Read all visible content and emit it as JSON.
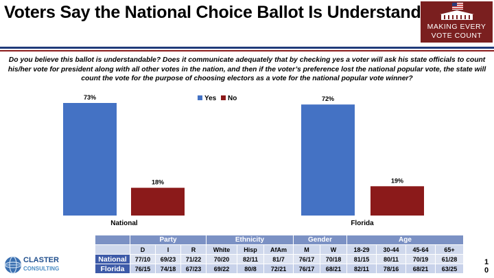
{
  "title": "Voters Say the National Choice Ballot Is Understandable",
  "logo": {
    "line1": "Making Every",
    "line2": "Vote Count"
  },
  "question": "Do you believe this ballot is understandable? Does it communicate adequately that by checking yes a voter will ask his state officials to count his/her vote for president along with all other votes in the nation, and then if the voter’s preference lost the national popular vote, the state will count the vote for the purpose of choosing electors as a vote for the national popular vote winner?",
  "chart_data": {
    "type": "bar",
    "title": "",
    "groups": [
      {
        "name": "National",
        "series": [
          {
            "name": "Yes",
            "value": 73,
            "label": "73%"
          },
          {
            "name": "No",
            "value": 18,
            "label": "18%"
          }
        ]
      },
      {
        "name": "Florida",
        "series": [
          {
            "name": "Yes",
            "value": 72,
            "label": "72%"
          },
          {
            "name": "No",
            "value": 19,
            "label": "19%"
          }
        ]
      }
    ],
    "legend": [
      {
        "name": "Yes",
        "color": "#4472c4"
      },
      {
        "name": "No",
        "color": "#8b1a1a"
      }
    ],
    "legend_position": "top-center",
    "ylim": [
      0,
      80
    ],
    "grid": false
  },
  "table": {
    "groups": [
      {
        "label": "Party",
        "span": 3
      },
      {
        "label": "Ethnicity",
        "span": 3
      },
      {
        "label": "Gender",
        "span": 2
      },
      {
        "label": "Age",
        "span": 4
      }
    ],
    "columns": [
      "D",
      "I",
      "R",
      "White",
      "Hisp",
      "AfAm",
      "M",
      "W",
      "18-29",
      "30-44",
      "45-64",
      "65+"
    ],
    "rows": [
      {
        "label": "National",
        "values": [
          "77/10",
          "69/23",
          "71/22",
          "70/20",
          "82/11",
          "81/7",
          "76/17",
          "70/18",
          "81/15",
          "80/11",
          "70/19",
          "61/28"
        ]
      },
      {
        "label": "Florida",
        "values": [
          "76/15",
          "74/18",
          "67/23",
          "69/22",
          "80/8",
          "72/21",
          "76/17",
          "68/21",
          "82/11",
          "78/16",
          "68/21",
          "63/25"
        ]
      }
    ]
  },
  "footer": {
    "company_line1": "CLASTER",
    "company_line2": "CONSULTING",
    "page_number": "10"
  }
}
